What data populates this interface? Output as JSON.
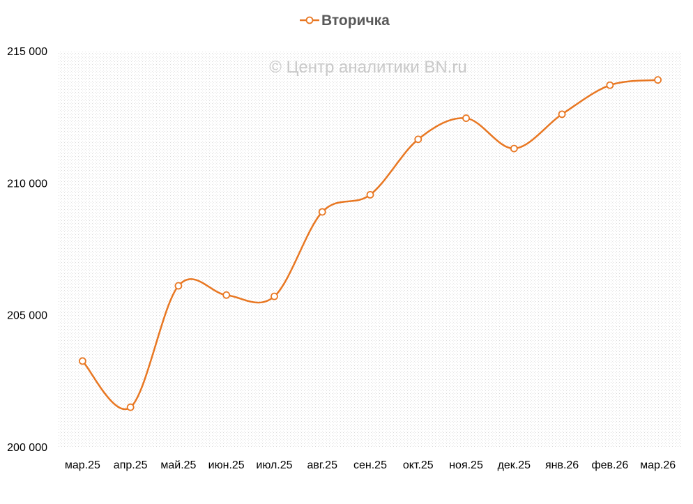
{
  "watermark": "© Центр аналитики BN.ru",
  "chart_data": {
    "type": "line",
    "categories": [
      "мар.25",
      "апр.25",
      "май.25",
      "июн.25",
      "июл.25",
      "авг.25",
      "сен.25",
      "окт.25",
      "ноя.25",
      "дек.25",
      "янв.26",
      "фев.26",
      "мар.26"
    ],
    "series": [
      {
        "name": "Вторичка",
        "color": "#E87722",
        "values": [
          203250,
          201500,
          206100,
          205750,
          205700,
          208900,
          209550,
          211650,
          212450,
          211300,
          212600,
          213700,
          213900
        ]
      }
    ],
    "ylim": [
      200000,
      215000
    ],
    "yticks": [
      200000,
      205000,
      210000,
      215000
    ],
    "ytick_labels": [
      "200 000",
      "205 000",
      "210 000",
      "215 000"
    ],
    "legend_position": "top-center",
    "grid": false,
    "smooth": true
  }
}
